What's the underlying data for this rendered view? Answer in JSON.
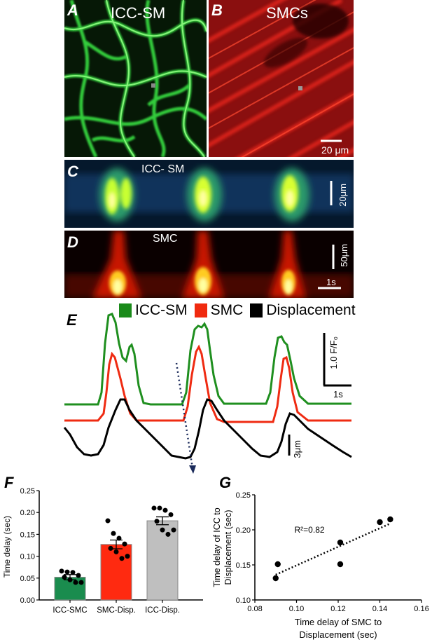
{
  "panels": {
    "A": {
      "letter": "A",
      "label": "ICC-SM"
    },
    "B": {
      "letter": "B",
      "label": "SMCs",
      "scale": "20 μm"
    },
    "C": {
      "letter": "C",
      "label": "ICC- SM",
      "scale": "20μm"
    },
    "D": {
      "letter": "D",
      "label": "SMC",
      "scale_v": "50μm",
      "scale_h": "1s"
    },
    "E": {
      "letter": "E",
      "scale_v": "1.0 F/F₀",
      "scale_h": "1s",
      "disp_scale": "3μm"
    },
    "F": {
      "letter": "F"
    },
    "G": {
      "letter": "G"
    }
  },
  "legend": [
    {
      "label": "ICC-SM",
      "color": "#1a8a1a"
    },
    {
      "label": "SMC",
      "color": "#f02a0f"
    },
    {
      "label": "Displacement",
      "color": "#000000"
    }
  ],
  "chart_data": [
    {
      "type": "bar",
      "panel": "F",
      "ylabel": "Time delay (sec)",
      "ylim": [
        0,
        0.25
      ],
      "yticks": [
        "0.00",
        "0.05",
        "0.10",
        "0.15",
        "0.20",
        "0.25"
      ],
      "categories": [
        "ICC-SMC",
        "SMC-Disp.",
        "ICC-Disp."
      ],
      "values": [
        0.052,
        0.127,
        0.181
      ],
      "sem": [
        0.006,
        0.01,
        0.009
      ],
      "colors": [
        "#1a8c4e",
        "#ff2a10",
        "#bfbfbf"
      ],
      "points": [
        [
          0.066,
          0.064,
          0.063,
          0.056,
          0.052,
          0.046,
          0.04,
          0.04
        ],
        [
          0.181,
          0.152,
          0.141,
          0.128,
          0.118,
          0.11,
          0.095,
          0.1
        ],
        [
          0.21,
          0.21,
          0.205,
          0.195,
          0.18,
          0.16,
          0.15,
          0.16
        ]
      ]
    },
    {
      "type": "scatter",
      "panel": "G",
      "xlabel": "Time delay of SMC to Displacement (sec)",
      "ylabel": "Time delay of ICC to Displacement (sec)",
      "xlim": [
        0.08,
        0.16
      ],
      "ylim": [
        0.1,
        0.25
      ],
      "xticks": [
        "0.08",
        "0.10",
        "0.12",
        "0.14",
        "0.16"
      ],
      "yticks": [
        "0.10",
        "0.15",
        "0.20",
        "0.25"
      ],
      "x": [
        0.09,
        0.091,
        0.121,
        0.121,
        0.14,
        0.145
      ],
      "y": [
        0.131,
        0.151,
        0.151,
        0.182,
        0.211,
        0.215
      ],
      "fit": {
        "x": [
          0.09,
          0.145
        ],
        "y": [
          0.136,
          0.209
        ]
      },
      "annotation": "R²=0.82"
    }
  ]
}
